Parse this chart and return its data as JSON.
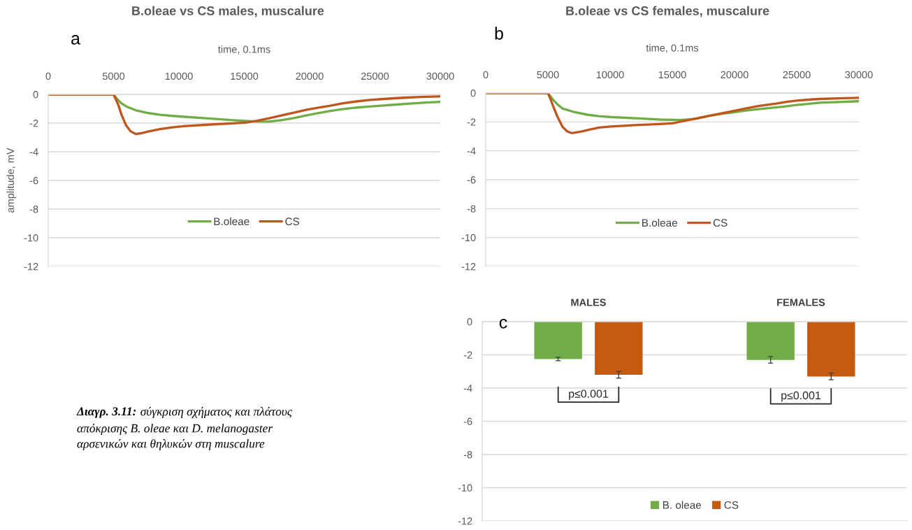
{
  "chart_data": [
    {
      "type": "line",
      "title": "B.oleae vs CS males, muscalure",
      "xlabel": "time, 0.1ms",
      "ylabel": "amplitude, mV",
      "annotations": [
        "a"
      ],
      "xlim": [
        0,
        30000
      ],
      "xticks": [
        0,
        5000,
        10000,
        15000,
        20000,
        25000,
        30000
      ],
      "ylim": [
        -12,
        0
      ],
      "yticks": [
        0,
        -2,
        -4,
        -6,
        -8,
        -10,
        -12
      ],
      "grid": "y",
      "legend": "bottom",
      "series": [
        {
          "name": "B.oleae",
          "color": "#70ad47",
          "x": [
            0,
            2500,
            5000,
            5250,
            5570,
            6000,
            6680,
            7500,
            8560,
            9500,
            10410,
            12260,
            14140,
            16000,
            16900,
            17840,
            18800,
            19720,
            20700,
            21600,
            22500,
            23450,
            24400,
            25300,
            26500,
            27500,
            28700,
            30000
          ],
          "values": [
            0,
            0,
            0,
            -0.3,
            -0.6,
            -0.85,
            -1.1,
            -1.28,
            -1.42,
            -1.5,
            -1.56,
            -1.68,
            -1.8,
            -1.9,
            -1.9,
            -1.8,
            -1.65,
            -1.47,
            -1.3,
            -1.15,
            -1.03,
            -0.93,
            -0.86,
            -0.8,
            -0.72,
            -0.65,
            -0.58,
            -0.52
          ]
        },
        {
          "name": "CS",
          "color": "#c0561c",
          "x": [
            0,
            2500,
            5000,
            5200,
            5370,
            5600,
            5950,
            6310,
            6680,
            7040,
            7700,
            8560,
            9500,
            10410,
            12260,
            14140,
            15070,
            16000,
            16900,
            17840,
            18800,
            19720,
            20700,
            21600,
            22500,
            23500,
            24500,
            25500,
            26500,
            27500,
            28500,
            30000
          ],
          "values": [
            0,
            0,
            0,
            -0.4,
            -0.75,
            -1.4,
            -2.15,
            -2.58,
            -2.76,
            -2.72,
            -2.58,
            -2.42,
            -2.3,
            -2.21,
            -2.11,
            -2.02,
            -1.97,
            -1.84,
            -1.67,
            -1.47,
            -1.27,
            -1.08,
            -0.92,
            -0.79,
            -0.63,
            -0.5,
            -0.4,
            -0.33,
            -0.27,
            -0.22,
            -0.18,
            -0.14
          ]
        }
      ]
    },
    {
      "type": "line",
      "title": "B.oleae vs CS females, muscalure",
      "xlabel": "time, 0.1ms",
      "annotations": [
        "b"
      ],
      "xlim": [
        0,
        30000
      ],
      "xticks": [
        0,
        5000,
        10000,
        15000,
        20000,
        25000,
        30000
      ],
      "ylim": [
        -12,
        0
      ],
      "yticks": [
        0,
        -2,
        -4,
        -6,
        -8,
        -10,
        -12
      ],
      "grid": "y",
      "legend": "bottom",
      "series": [
        {
          "name": "B.oleae",
          "color": "#70ad47",
          "x": [
            0,
            2500,
            5000,
            5400,
            5785,
            6170,
            7160,
            8150,
            9100,
            10120,
            12080,
            14050,
            15620,
            16300,
            17000,
            17970,
            18950,
            19940,
            20900,
            21920,
            22900,
            23890,
            25000,
            25870,
            26880,
            28400,
            30000
          ],
          "values": [
            0,
            0,
            0,
            -0.45,
            -0.8,
            -1.07,
            -1.33,
            -1.5,
            -1.6,
            -1.67,
            -1.75,
            -1.84,
            -1.87,
            -1.84,
            -1.75,
            -1.58,
            -1.45,
            -1.33,
            -1.22,
            -1.12,
            -1.03,
            -0.95,
            -0.83,
            -0.76,
            -0.67,
            -0.62,
            -0.57
          ]
        },
        {
          "name": "CS",
          "color": "#c0561c",
          "x": [
            0,
            2500,
            5000,
            5200,
            5400,
            5785,
            6170,
            6560,
            6940,
            7750,
            8400,
            9130,
            10100,
            11100,
            12000,
            13060,
            14000,
            15030,
            16010,
            17000,
            17970,
            18950,
            19940,
            20900,
            21920,
            23360,
            24200,
            25000,
            26000,
            26880,
            28400,
            30000
          ],
          "values": [
            0,
            0,
            0,
            -0.4,
            -0.86,
            -1.67,
            -2.34,
            -2.66,
            -2.78,
            -2.66,
            -2.52,
            -2.39,
            -2.32,
            -2.27,
            -2.22,
            -2.18,
            -2.15,
            -2.1,
            -1.92,
            -1.76,
            -1.58,
            -1.41,
            -1.24,
            -1.07,
            -0.9,
            -0.73,
            -0.61,
            -0.53,
            -0.46,
            -0.41,
            -0.37,
            -0.33
          ]
        }
      ]
    },
    {
      "type": "bar",
      "categories": [
        "MALES",
        "FEMALES"
      ],
      "annotations": [
        "c",
        "p≤0.001",
        "p≤0.001"
      ],
      "ylim": [
        -12,
        0
      ],
      "yticks": [
        0,
        -2,
        -4,
        -6,
        -8,
        -10,
        -12
      ],
      "grid": "y",
      "legend": "bottom",
      "series": [
        {
          "name": "B. oleae",
          "color": "#70ad47",
          "values": [
            -2.25,
            -2.3
          ],
          "errors": [
            0.1,
            0.2
          ]
        },
        {
          "name": "CS",
          "color": "#c55a11",
          "values": [
            -3.2,
            -3.3
          ],
          "errors": [
            0.2,
            0.2
          ]
        }
      ]
    },
    {
      "type": "other",
      "annotations": [
        "Διαγρ. 3.11:",
        "σύγκριση σχήματος και πλάτους",
        "απόκρισης B. oleae και D. melanogaster\nαρσενικών και θηλυκών στη muscalure"
      ]
    }
  ]
}
